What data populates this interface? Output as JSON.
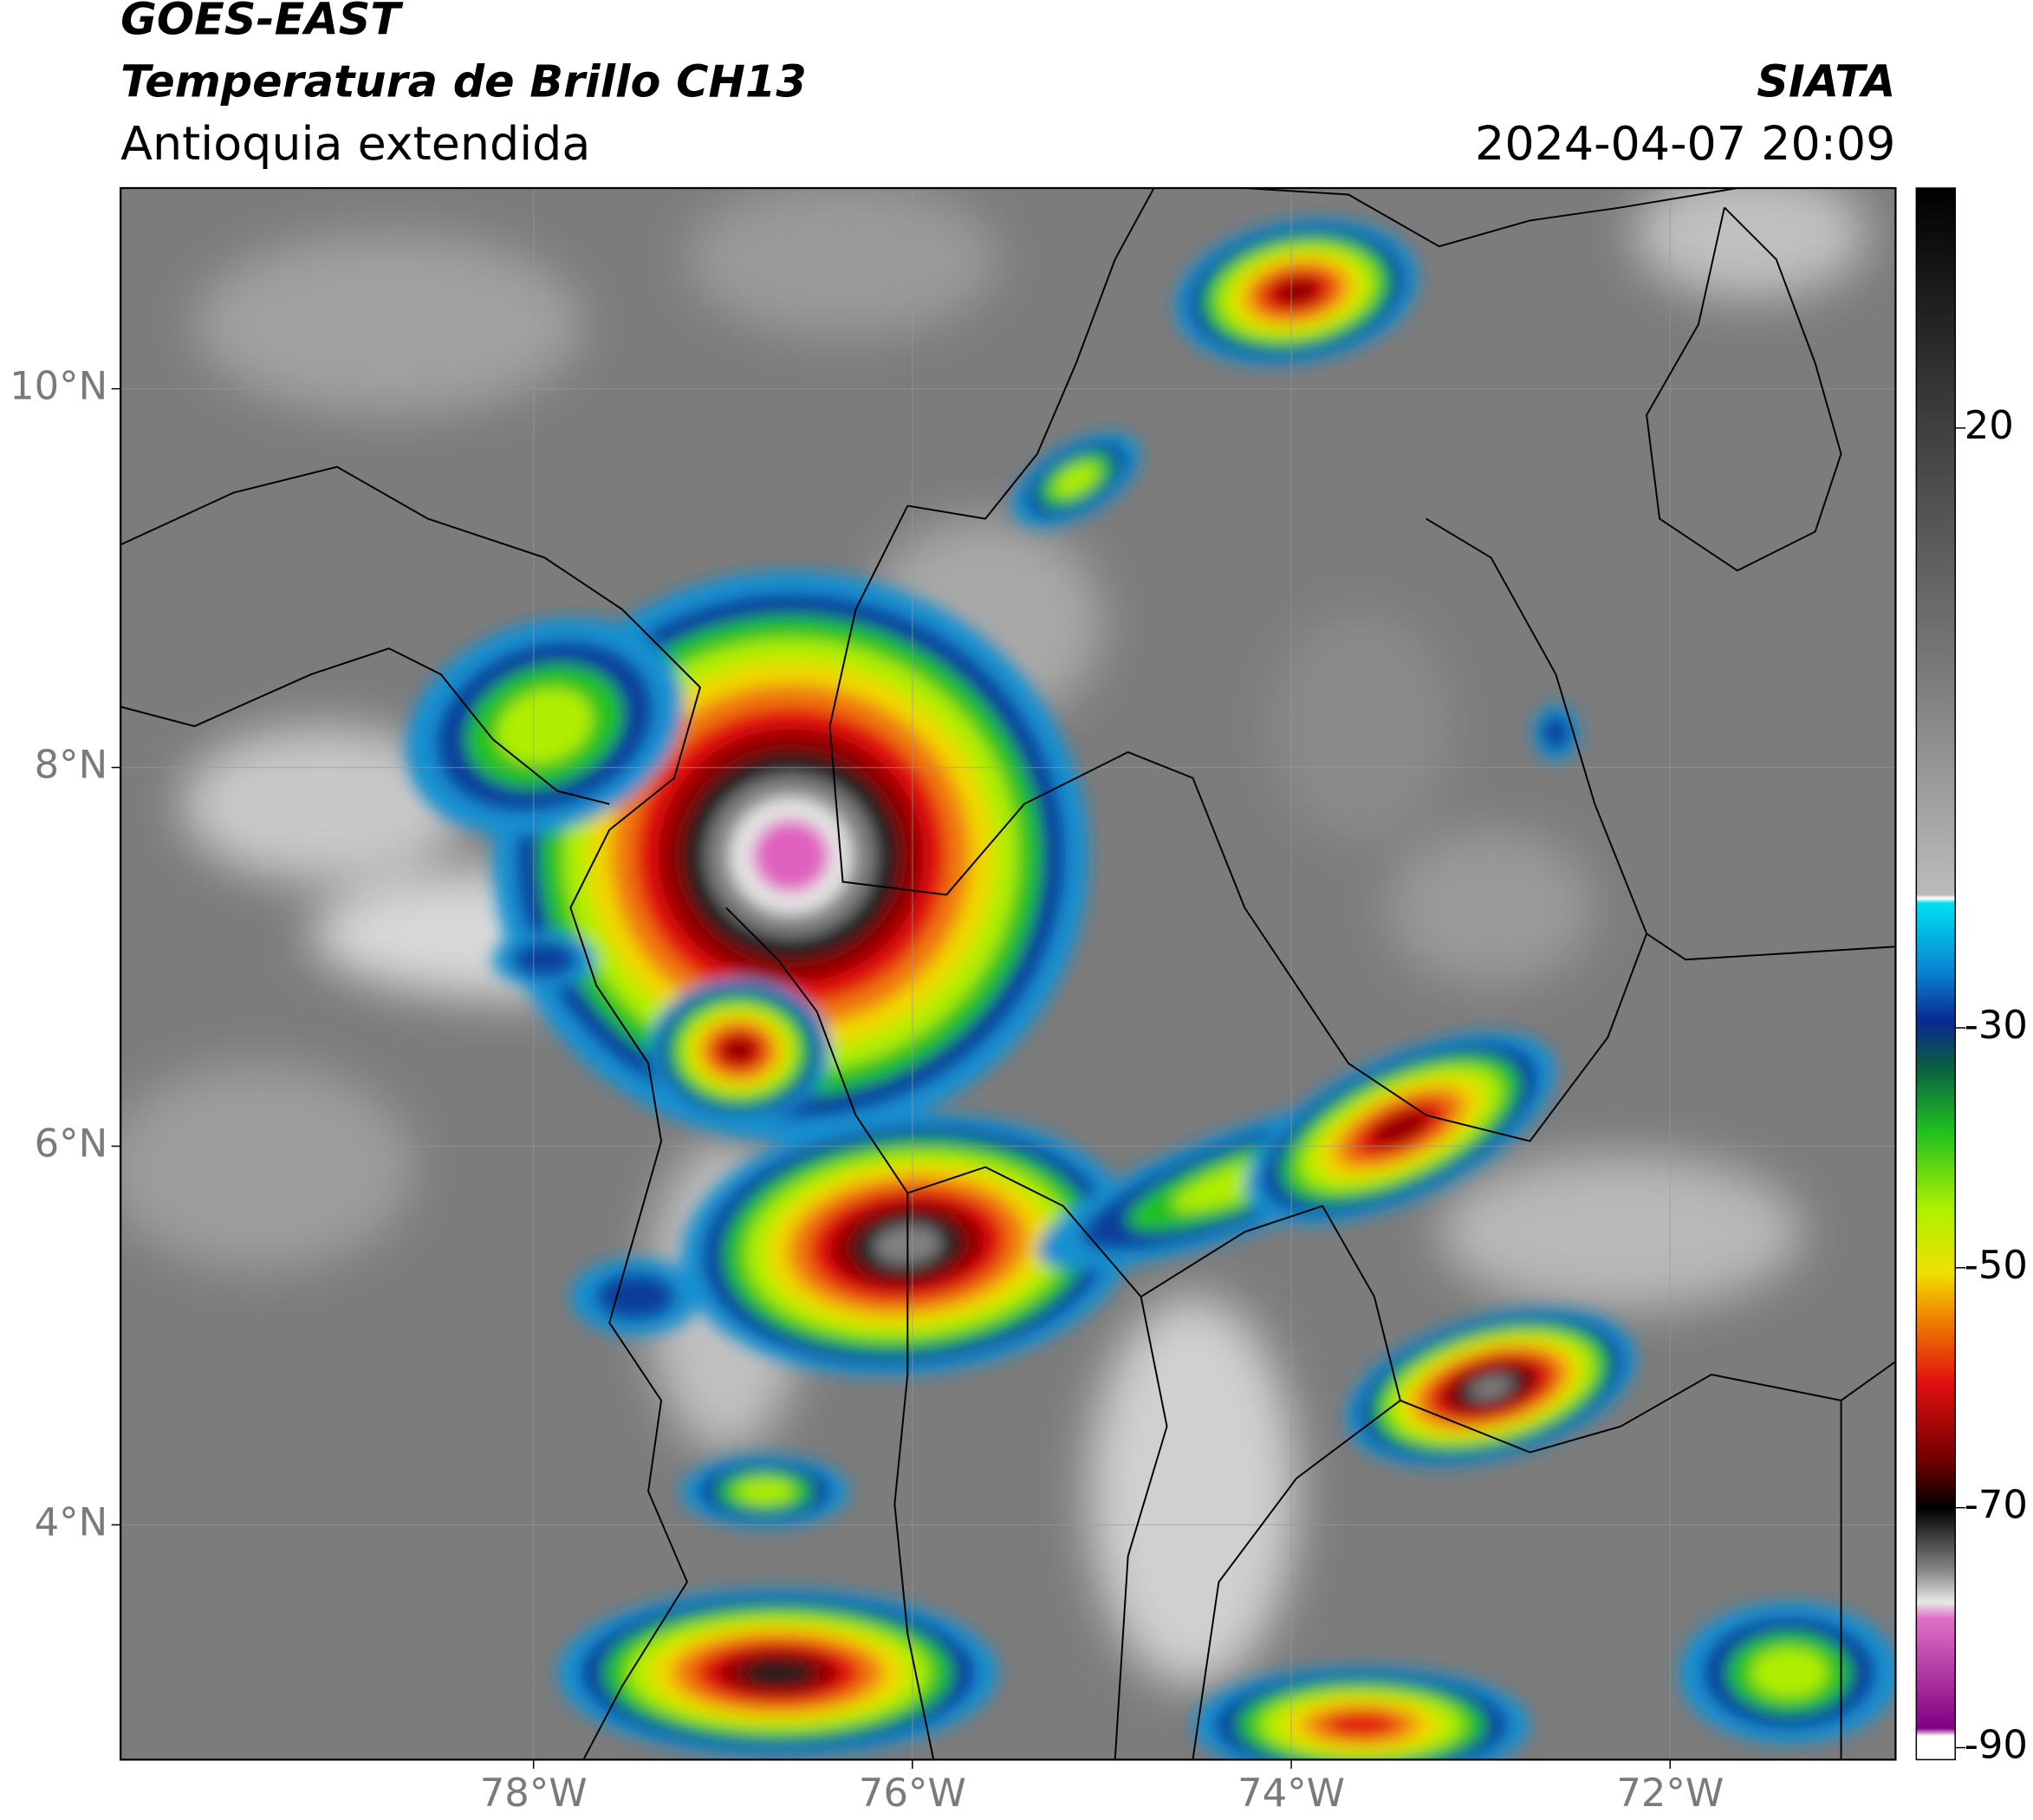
{
  "header": {
    "title": "GOES-EAST",
    "subtitle": "Temperatura de Brillo CH13",
    "region": "Antioquia extendida",
    "source": "SIATA",
    "timestamp": "2024-04-07 20:09"
  },
  "map": {
    "xlim": [
      -80.18,
      -70.81
    ],
    "ylim": [
      2.76,
      11.06
    ],
    "grid": true,
    "xticks": [
      {
        "value": -78,
        "label": "78°W"
      },
      {
        "value": -76,
        "label": "76°W"
      },
      {
        "value": -74,
        "label": "74°W"
      },
      {
        "value": -72,
        "label": "72°W"
      }
    ],
    "yticks": [
      {
        "value": 10,
        "label": "10°N"
      },
      {
        "value": 8,
        "label": "8°N"
      },
      {
        "value": 6,
        "label": "6°N"
      },
      {
        "value": 4,
        "label": "4°N"
      }
    ]
  },
  "colorbar": {
    "lim": [
      -91,
      40
    ],
    "ticks": [
      20,
      -30,
      -50,
      -70,
      -90
    ]
  }
}
